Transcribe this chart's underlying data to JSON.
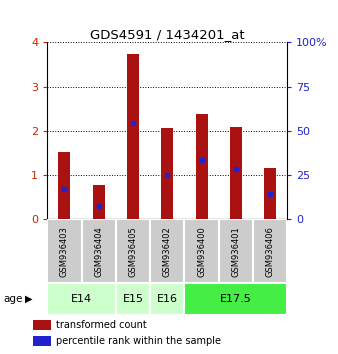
{
  "title": "GDS4591 / 1434201_at",
  "samples": [
    "GSM936403",
    "GSM936404",
    "GSM936405",
    "GSM936402",
    "GSM936400",
    "GSM936401",
    "GSM936406"
  ],
  "transformed_counts": [
    1.52,
    0.77,
    3.73,
    2.07,
    2.39,
    2.1,
    1.17
  ],
  "percentile_ranks_scaled": [
    0.68,
    0.3,
    2.17,
    1.0,
    1.35,
    1.13,
    0.57
  ],
  "age_groups": [
    {
      "label": "E14",
      "indices": [
        0,
        1
      ],
      "color": "#ccffcc"
    },
    {
      "label": "E15",
      "indices": [
        2
      ],
      "color": "#ccffcc"
    },
    {
      "label": "E16",
      "indices": [
        3
      ],
      "color": "#ccffcc"
    },
    {
      "label": "E17.5",
      "indices": [
        4,
        5,
        6
      ],
      "color": "#44ee44"
    }
  ],
  "bar_color": "#aa1111",
  "percentile_color": "#2222cc",
  "ylim_left": [
    0,
    4
  ],
  "ylim_right": [
    0,
    100
  ],
  "yticks_left": [
    0,
    1,
    2,
    3,
    4
  ],
  "yticks_right": [
    0,
    25,
    50,
    75,
    100
  ],
  "sample_box_color": "#cccccc",
  "age_label_text": "age",
  "legend_items": [
    {
      "label": "transformed count",
      "color": "#aa1111"
    },
    {
      "label": "percentile rank within the sample",
      "color": "#2222cc"
    }
  ]
}
